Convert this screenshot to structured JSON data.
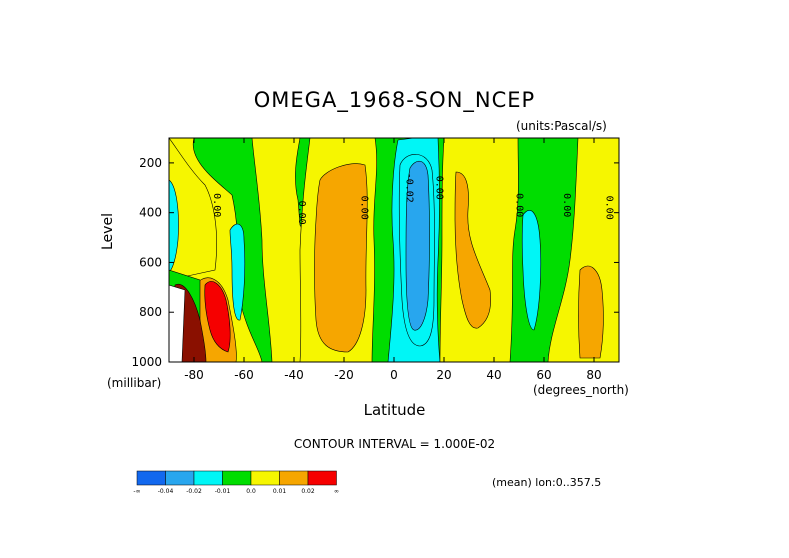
{
  "chart_data": {
    "type": "heatmap",
    "title": "OMEGA_1968-SON_NCEP",
    "units": "(units:Pascal/s)",
    "xlabel": "Latitude",
    "ylabel": "Level",
    "x_units": "(degrees_north)",
    "y_units": "(millibar)",
    "xlim": [
      -90,
      90
    ],
    "ylim": [
      1000,
      100
    ],
    "x_ticks": [
      -80,
      -60,
      -40,
      -20,
      0,
      20,
      40,
      60,
      80
    ],
    "y_ticks": [
      200,
      400,
      600,
      800,
      1000
    ],
    "contour_interval": "CONTOUR INTERVAL = 1.000E-02",
    "region": "(mean) lon:0..357.5",
    "contour_labels": [
      {
        "text": "0.00",
        "lat": -72,
        "level": 370
      },
      {
        "text": "0.00",
        "lat": -38,
        "level": 400
      },
      {
        "text": "0.00",
        "lat": -13,
        "level": 380
      },
      {
        "text": "-0.02",
        "lat": 5,
        "level": 300
      },
      {
        "text": "0.00",
        "lat": 17,
        "level": 300
      },
      {
        "text": "0.00",
        "lat": 49,
        "level": 370
      },
      {
        "text": "0.00",
        "lat": 68,
        "level": 370
      },
      {
        "text": "0.00",
        "lat": 85,
        "level": 380
      }
    ],
    "colorbar": {
      "labels": [
        "-∞",
        "-0.04",
        "-0.02",
        "-0.01",
        "0.0",
        "0.01",
        "0.02",
        "∞"
      ],
      "colors": [
        "#1268ee",
        "#28a6ee",
        "#00f6f6",
        "#00dd00",
        "#f6f600",
        "#f6a600",
        "#f60000"
      ]
    }
  }
}
